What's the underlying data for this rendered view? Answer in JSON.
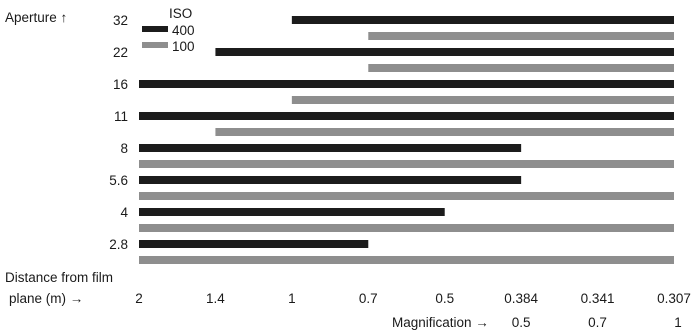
{
  "chart_data": {
    "type": "bar",
    "orientation": "horizontal",
    "title": "",
    "ylabel": "Aperture ↑",
    "xlabel_line1": "Distance from film",
    "xlabel_line2": "plane (m)  →",
    "secondary_xlabel": "Magnification  →",
    "legend": {
      "title": "ISO",
      "position": "top-left",
      "entries": [
        {
          "label": "400",
          "color": "#1c1c1c"
        },
        {
          "label": "100",
          "color": "#8e8e8e"
        }
      ]
    },
    "x_ticks": [
      "2",
      "1.4",
      "1",
      "0.7",
      "0.5",
      "0.384",
      "0.341",
      "0.307"
    ],
    "magnification_ticks": [
      {
        "label": "0.5",
        "at": "0.384"
      },
      {
        "label": "0.7",
        "at": "0.341"
      },
      {
        "label": "1",
        "at": "0.307"
      }
    ],
    "apertures": [
      "32",
      "22",
      "16",
      "11",
      "8",
      "5.6",
      "4",
      "2.8"
    ],
    "series": [
      {
        "name": "400",
        "color": "#1c1c1c",
        "ranges": [
          {
            "aperture": "32",
            "from": "1",
            "to": "0.307"
          },
          {
            "aperture": "22",
            "from": "1.4",
            "to": "0.307"
          },
          {
            "aperture": "16",
            "from": "2",
            "to": "0.307"
          },
          {
            "aperture": "11",
            "from": "2",
            "to": "0.307"
          },
          {
            "aperture": "8",
            "from": "2",
            "to": "0.384"
          },
          {
            "aperture": "5.6",
            "from": "2",
            "to": "0.384"
          },
          {
            "aperture": "4",
            "from": "2",
            "to": "0.5"
          },
          {
            "aperture": "2.8",
            "from": "2",
            "to": "0.7"
          }
        ]
      },
      {
        "name": "100",
        "color": "#8e8e8e",
        "ranges": [
          {
            "aperture": "32",
            "from": "0.7",
            "to": "0.307"
          },
          {
            "aperture": "22",
            "from": "0.7",
            "to": "0.307"
          },
          {
            "aperture": "16",
            "from": "1",
            "to": "0.307"
          },
          {
            "aperture": "11",
            "from": "1.4",
            "to": "0.307"
          },
          {
            "aperture": "8",
            "from": "2",
            "to": "0.307"
          },
          {
            "aperture": "5.6",
            "from": "2",
            "to": "0.307"
          },
          {
            "aperture": "4",
            "from": "2",
            "to": "0.307"
          },
          {
            "aperture": "2.8",
            "from": "2",
            "to": "0.307"
          }
        ]
      }
    ],
    "grid": false
  }
}
